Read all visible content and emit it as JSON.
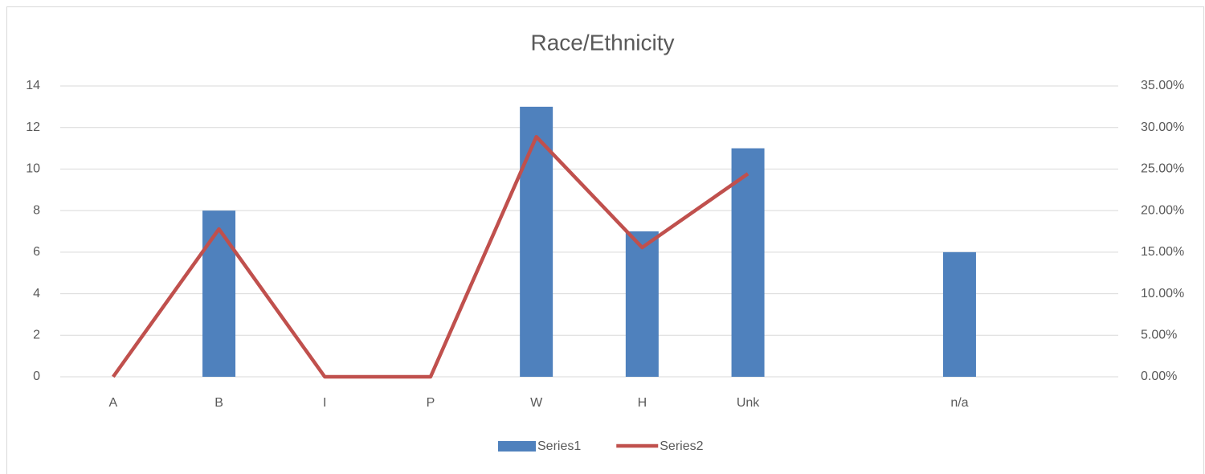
{
  "chart_data": {
    "type": "bar_line",
    "title": "Race/Ethnicity",
    "categories": [
      "A",
      "B",
      "I",
      "P",
      "W",
      "H",
      "Unk",
      null,
      "n/a",
      null
    ],
    "series": [
      {
        "name": "Series1",
        "type": "bar",
        "color": "#4f81bd",
        "values": [
          0,
          8,
          0,
          0,
          13,
          7,
          11,
          null,
          6,
          null
        ]
      },
      {
        "name": "Series2",
        "type": "line",
        "axis": "y2",
        "color": "#c0504d",
        "values": [
          0,
          17.78,
          0,
          0,
          28.89,
          15.56,
          24.44,
          null,
          null,
          null
        ]
      }
    ],
    "ylim": [
      0,
      14
    ],
    "yticks": [
      0,
      2,
      4,
      6,
      8,
      10,
      12,
      14
    ],
    "y2lim": [
      0,
      35
    ],
    "y2ticks": [
      {
        "value": 0,
        "label": "0.00%"
      },
      {
        "value": 5,
        "label": "5.00%"
      },
      {
        "value": 10,
        "label": "10.00%"
      },
      {
        "value": 15,
        "label": "15.00%"
      },
      {
        "value": 20,
        "label": "20.00%"
      },
      {
        "value": 25,
        "label": "25.00%"
      },
      {
        "value": 30,
        "label": "30.00%"
      },
      {
        "value": 35,
        "label": "35.00%"
      }
    ],
    "grid": true,
    "legend": "bottom"
  }
}
